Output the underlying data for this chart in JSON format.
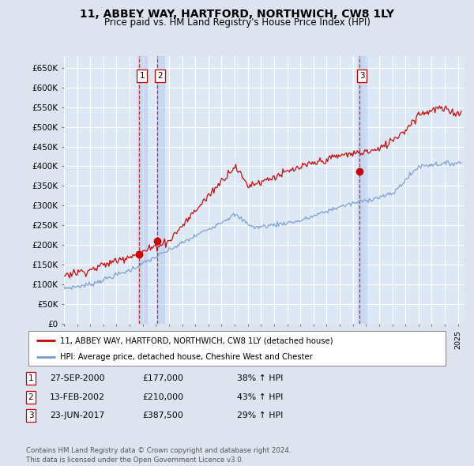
{
  "title": "11, ABBEY WAY, HARTFORD, NORTHWICH, CW8 1LY",
  "subtitle": "Price paid vs. HM Land Registry's House Price Index (HPI)",
  "ylabel_ticks": [
    "£0",
    "£50K",
    "£100K",
    "£150K",
    "£200K",
    "£250K",
    "£300K",
    "£350K",
    "£400K",
    "£450K",
    "£500K",
    "£550K",
    "£600K",
    "£650K"
  ],
  "ytick_values": [
    0,
    50000,
    100000,
    150000,
    200000,
    250000,
    300000,
    350000,
    400000,
    450000,
    500000,
    550000,
    600000,
    650000
  ],
  "xmin": 1995.0,
  "xmax": 2025.5,
  "ymin": 0,
  "ymax": 680000,
  "sale_dates": [
    2000.74,
    2002.12,
    2017.48
  ],
  "sale_prices": [
    177000,
    210000,
    387500
  ],
  "sale_labels": [
    "1",
    "2",
    "3"
  ],
  "bg_color": "#dde4f0",
  "plot_bg": "#dde8f5",
  "red_color": "#cc0000",
  "blue_color": "#7799cc",
  "grid_color": "#ffffff",
  "legend_label_red": "11, ABBEY WAY, HARTFORD, NORTHWICH, CW8 1LY (detached house)",
  "legend_label_blue": "HPI: Average price, detached house, Cheshire West and Chester",
  "table_rows": [
    [
      "1",
      "27-SEP-2000",
      "£177,000",
      "38% ↑ HPI"
    ],
    [
      "2",
      "13-FEB-2002",
      "£210,000",
      "43% ↑ HPI"
    ],
    [
      "3",
      "23-JUN-2017",
      "£387,500",
      "29% ↑ HPI"
    ]
  ],
  "footnote": "Contains HM Land Registry data © Crown copyright and database right 2024.\nThis data is licensed under the Open Government Licence v3.0.",
  "title_fontsize": 10,
  "subtitle_fontsize": 8.5
}
